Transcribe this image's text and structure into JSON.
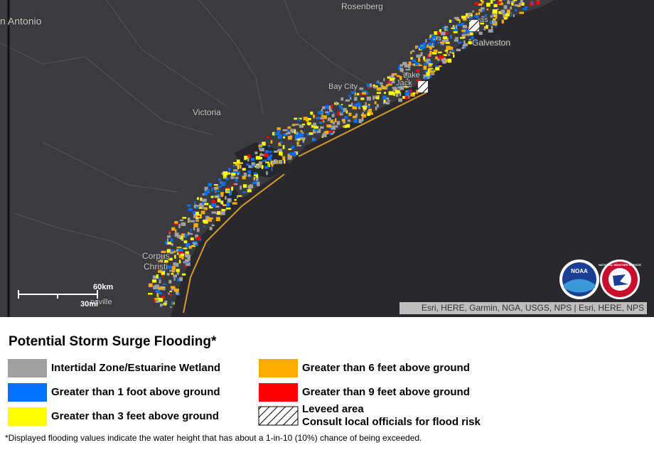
{
  "map": {
    "places": [
      "Rosenberg",
      "n Antonio",
      "Victoria",
      "Bay City",
      "Galveston",
      "Corpus",
      "Christi",
      "Lake",
      "Jack",
      "nsville",
      "as"
    ],
    "scale": {
      "km": "60km",
      "mi": "30mi"
    },
    "attribution": "Esri, HERE, Garmin, NGA, USGS, NPS | Esri, HERE, NPS",
    "logos": [
      "NOAA",
      "NATIONAL WEATHER SERVICE"
    ]
  },
  "legend": {
    "title": "Potential Storm Surge Flooding*",
    "items": [
      {
        "label": "Intertidal Zone/Estuarine Wetland",
        "color": "#a0a0a0"
      },
      {
        "label": "Greater than 1 foot above ground",
        "color": "#0070ff"
      },
      {
        "label": "Greater than 3 feet above ground",
        "color": "#ffff00"
      },
      {
        "label": "Greater than 6 feet above ground",
        "color": "#ffaa00"
      },
      {
        "label": "Greater than 9 feet above ground",
        "color": "#ff0000"
      }
    ],
    "leveed": [
      "Leveed area",
      "Consult local officials for flood risk"
    ]
  },
  "footnote": "*Displayed flooding values indicate the water height that has about a 1-in-10 (10%) chance of being exceeded."
}
